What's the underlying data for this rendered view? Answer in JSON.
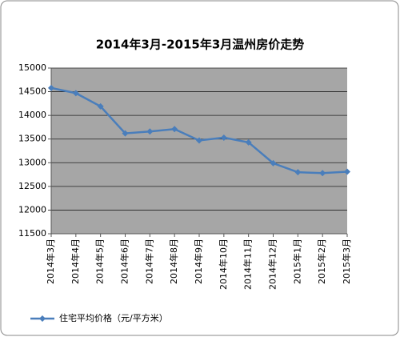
{
  "chart_data": {
    "type": "line",
    "title": "2014年3月-2015年3月温州房价走势",
    "categories": [
      "2014年3月",
      "2014年4月",
      "2014年5月",
      "2014年6月",
      "2014年7月",
      "2014年8月",
      "2014年9月",
      "2014年10月",
      "2014年11月",
      "2014年12月",
      "2015年1月",
      "2015年2月",
      "2015年3月"
    ],
    "series": [
      {
        "name": "住宅平均价格（元/平方米）",
        "color": "#4a7ebb",
        "values": [
          14580,
          14470,
          14190,
          13620,
          13660,
          13710,
          13470,
          13530,
          13430,
          12990,
          12800,
          12780,
          12810
        ]
      }
    ],
    "ylim": [
      11500,
      15000
    ],
    "yticks": [
      11500,
      12000,
      12500,
      13000,
      13500,
      14000,
      14500,
      15000
    ],
    "grid": true,
    "plot_background": "#a6a6a6",
    "legend": "bottom-left"
  }
}
